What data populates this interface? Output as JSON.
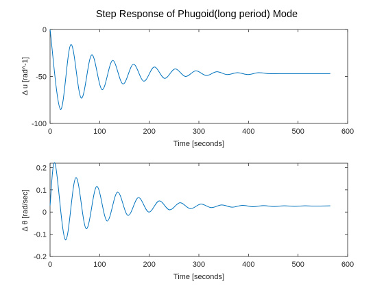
{
  "figure": {
    "title": "Step Response of Phugoid(long period) Mode"
  },
  "chart_data": [
    {
      "type": "line",
      "title": "Step Response of Phugoid(long period) Mode",
      "xlabel": "Time [seconds]",
      "ylabel": "Δ u [rad^-1]",
      "xlim": [
        0,
        600
      ],
      "ylim": [
        -100,
        0
      ],
      "xticks": [
        0,
        100,
        200,
        300,
        400,
        500,
        600
      ],
      "yticks": [
        -100,
        -50,
        0
      ],
      "grid": false,
      "line_color": "#0072BD",
      "series": [
        {
          "x": [
            0,
            21,
            42,
            63,
            84,
            105,
            126,
            147,
            168,
            189,
            210,
            231,
            252,
            273,
            294,
            315,
            336,
            357,
            378,
            399,
            420,
            441,
            462,
            483,
            504,
            525,
            546,
            565
          ],
          "values": [
            0,
            -85,
            -16,
            -73,
            -27,
            -64,
            -33,
            -58,
            -37,
            -55,
            -40,
            -52,
            -42,
            -50,
            -44,
            -49,
            -45,
            -48,
            -46,
            -48,
            -46,
            -47,
            -47,
            -47,
            -47,
            -47,
            -47,
            -47
          ]
        }
      ]
    },
    {
      "type": "line",
      "title": "",
      "xlabel": "Time [seconds]",
      "ylabel": "Δ θ [rad/sec]",
      "xlim": [
        0,
        600
      ],
      "ylim": [
        -0.2,
        0.22
      ],
      "xticks": [
        0,
        100,
        200,
        300,
        400,
        500,
        600
      ],
      "yticks": [
        -0.2,
        -0.1,
        0,
        0.1,
        0.2
      ],
      "grid": false,
      "line_color": "#0072BD",
      "series": [
        {
          "x": [
            0,
            10,
            31,
            52,
            73,
            94,
            115,
            136,
            157,
            178,
            199,
            220,
            241,
            262,
            283,
            304,
            325,
            346,
            367,
            388,
            409,
            430,
            451,
            472,
            493,
            514,
            535,
            565
          ],
          "values": [
            0.03,
            0.22,
            -0.125,
            0.155,
            -0.075,
            0.115,
            -0.04,
            0.09,
            -0.015,
            0.065,
            0.0,
            0.05,
            0.01,
            0.042,
            0.015,
            0.036,
            0.02,
            0.032,
            0.022,
            0.03,
            0.024,
            0.029,
            0.025,
            0.028,
            0.026,
            0.028,
            0.027,
            0.028
          ]
        }
      ]
    }
  ]
}
